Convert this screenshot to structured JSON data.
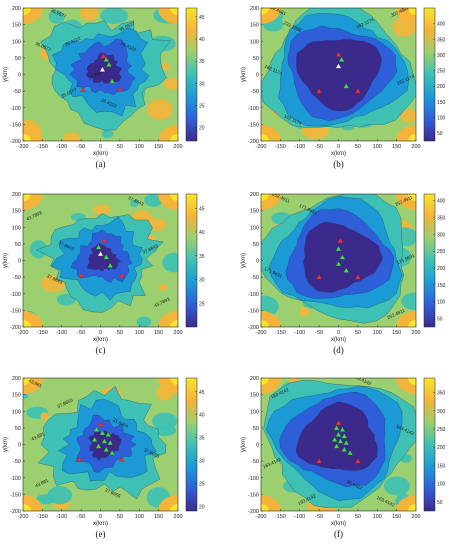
{
  "chart_data": [
    {
      "panel": "(a)",
      "type": "heatmap",
      "xlabel": "x(km)",
      "ylabel": "y(km)",
      "xlim": [
        -200,
        200
      ],
      "ylim": [
        -200,
        200
      ],
      "xticks": [
        -200,
        -150,
        -100,
        -50,
        0,
        50,
        100,
        150,
        200
      ],
      "yticks": [
        -200,
        -150,
        -100,
        -50,
        0,
        50,
        100,
        150,
        200
      ],
      "colorbar": {
        "min": 17,
        "max": 47,
        "ticks": [
          20,
          25,
          30,
          35,
          40,
          45
        ]
      },
      "colors": [
        "#3b2a8c",
        "#2f5fd8",
        "#1c9ad6",
        "#3ec1b4",
        "#9ccf70",
        "#f4b43a",
        "#f7e52a"
      ],
      "contour_labels": [
        {
          "text": "35.0577",
          "x": -110,
          "y": 180
        },
        {
          "text": "35.0577",
          "x": 70,
          "y": 140
        },
        {
          "text": "35.0577",
          "x": -150,
          "y": 80
        },
        {
          "text": "26.4122",
          "x": -70,
          "y": 95
        },
        {
          "text": "29.4122",
          "x": 70,
          "y": 80
        },
        {
          "text": "23.7664",
          "x": -10,
          "y": -5
        },
        {
          "text": "26.4122",
          "x": 20,
          "y": -90
        },
        {
          "text": "35.0577",
          "x": -80,
          "y": -60
        }
      ],
      "shape": {
        "center": [
          10,
          15
        ],
        "radii": [
          150,
          115,
          78,
          42
        ],
        "irregularity": 0.3,
        "seed": 3
      },
      "markers": [
        {
          "x": 8,
          "y": 55,
          "color": "#ff2b2b"
        },
        {
          "x": 15,
          "y": 45,
          "color": "#39e639"
        },
        {
          "x": 22,
          "y": 30,
          "color": "#39e639"
        },
        {
          "x": 5,
          "y": 15,
          "color": "#ffffff"
        },
        {
          "x": -45,
          "y": -45,
          "color": "#ff2b2b"
        },
        {
          "x": 50,
          "y": -45,
          "color": "#ff2b2b"
        },
        {
          "x": 30,
          "y": -20,
          "color": "#39e639"
        }
      ]
    },
    {
      "panel": "(b)",
      "type": "heatmap",
      "xlabel": "x(km)",
      "ylabel": "y(km)",
      "xlim": [
        -200,
        200
      ],
      "ylim": [
        -200,
        200
      ],
      "xticks": [
        -200,
        -150,
        -100,
        -50,
        0,
        50,
        100,
        150,
        200
      ],
      "yticks": [
        -200,
        -150,
        -100,
        -50,
        0,
        50,
        100,
        150,
        200
      ],
      "colorbar": {
        "min": 25,
        "max": 450,
        "ticks": [
          50,
          100,
          150,
          200,
          250,
          300,
          350,
          400
        ]
      },
      "colors": [
        "#3b2a8c",
        "#2f5fd8",
        "#1c9ad6",
        "#3ec1b4",
        "#9ccf70",
        "#f4b43a",
        "#f7e52a"
      ],
      "contour_labels": [
        {
          "text": "302.4681",
          "x": -160,
          "y": 190
        },
        {
          "text": "302.4681",
          "x": 160,
          "y": 185
        },
        {
          "text": "232.2388",
          "x": -120,
          "y": 140
        },
        {
          "text": "162.1174",
          "x": 70,
          "y": 150
        },
        {
          "text": "162.1174",
          "x": -170,
          "y": 10
        },
        {
          "text": "162.1174",
          "x": 175,
          "y": -20
        },
        {
          "text": "162.1174",
          "x": -120,
          "y": -140
        }
      ],
      "shape": {
        "center": [
          0,
          10
        ],
        "radii": [
          190,
          165,
          135,
          105
        ],
        "irregularity": 0.06,
        "seed": 7
      },
      "markers": [
        {
          "x": 0,
          "y": 60,
          "color": "#ff2b2b"
        },
        {
          "x": 8,
          "y": 45,
          "color": "#39e639"
        },
        {
          "x": 0,
          "y": 25,
          "color": "#ffffff"
        },
        {
          "x": -50,
          "y": -50,
          "color": "#ff2b2b"
        },
        {
          "x": 50,
          "y": -50,
          "color": "#ff2b2b"
        },
        {
          "x": 20,
          "y": -35,
          "color": "#39e639"
        }
      ]
    },
    {
      "panel": "(c)",
      "type": "heatmap",
      "xlabel": "x(km)",
      "ylabel": "y(km)",
      "xlim": [
        -200,
        200
      ],
      "ylim": [
        -200,
        200
      ],
      "xticks": [
        -200,
        -150,
        -100,
        -50,
        0,
        50,
        100,
        150,
        200
      ],
      "yticks": [
        -200,
        -150,
        -100,
        -50,
        0,
        50,
        100,
        150,
        200
      ],
      "colorbar": {
        "min": 20,
        "max": 48,
        "ticks": [
          25,
          30,
          35,
          40,
          45
        ]
      },
      "colors": [
        "#3b2a8c",
        "#2f5fd8",
        "#1c9ad6",
        "#3ec1b4",
        "#9ccf70",
        "#f4b43a",
        "#f7e52a"
      ],
      "contour_labels": [
        {
          "text": "37.8643",
          "x": 90,
          "y": 175
        },
        {
          "text": "43.7893",
          "x": -170,
          "y": 130
        },
        {
          "text": "37.8643",
          "x": -90,
          "y": 40
        },
        {
          "text": "37.8643",
          "x": 130,
          "y": 30
        },
        {
          "text": "37.8643",
          "x": -120,
          "y": -60
        },
        {
          "text": "43.7893",
          "x": 160,
          "y": -130
        }
      ],
      "shape": {
        "center": [
          5,
          5
        ],
        "radii": [
          140,
          105,
          70,
          38
        ],
        "irregularity": 0.32,
        "seed": 11
      },
      "markers": [
        {
          "x": 10,
          "y": 60,
          "color": "#ff2b2b"
        },
        {
          "x": -5,
          "y": 40,
          "color": "#39e639"
        },
        {
          "x": 0,
          "y": 20,
          "color": "#ffffff"
        },
        {
          "x": 15,
          "y": 10,
          "color": "#39e639"
        },
        {
          "x": -50,
          "y": -45,
          "color": "#ff2b2b"
        },
        {
          "x": 55,
          "y": -45,
          "color": "#ff2b2b"
        },
        {
          "x": 25,
          "y": -15,
          "color": "#39e639"
        }
      ]
    },
    {
      "panel": "(d)",
      "type": "heatmap",
      "xlabel": "x(km)",
      "ylabel": "y(km)",
      "xlim": [
        -200,
        200
      ],
      "ylim": [
        -200,
        200
      ],
      "xticks": [
        -200,
        -150,
        -100,
        -50,
        0,
        50,
        100,
        150,
        200
      ],
      "yticks": [
        -200,
        -150,
        -100,
        -50,
        0,
        50,
        100,
        150,
        200
      ],
      "colorbar": {
        "min": 25,
        "max": 420,
        "ticks": [
          50,
          100,
          150,
          200,
          250,
          300,
          350,
          400
        ]
      },
      "colors": [
        "#3b2a8c",
        "#2f5fd8",
        "#1c9ad6",
        "#3ec1b4",
        "#9ccf70",
        "#f4b43a",
        "#f7e52a"
      ],
      "contour_labels": [
        {
          "text": "252.4911",
          "x": -150,
          "y": 185
        },
        {
          "text": "252.4911",
          "x": 170,
          "y": 175
        },
        {
          "text": "171.9631",
          "x": -80,
          "y": 150
        },
        {
          "text": "171.9631",
          "x": 175,
          "y": 0
        },
        {
          "text": "171.9631",
          "x": -170,
          "y": -40
        },
        {
          "text": "252.4911",
          "x": 150,
          "y": -165
        }
      ],
      "shape": {
        "center": [
          0,
          10
        ],
        "radii": [
          188,
          162,
          132,
          100
        ],
        "irregularity": 0.06,
        "seed": 5
      },
      "markers": [
        {
          "x": 5,
          "y": 60,
          "color": "#ff2b2b"
        },
        {
          "x": 0,
          "y": 35,
          "color": "#39e639"
        },
        {
          "x": 10,
          "y": 10,
          "color": "#39e639"
        },
        {
          "x": 0,
          "y": -10,
          "color": "#39e639"
        },
        {
          "x": -50,
          "y": -50,
          "color": "#ff2b2b"
        },
        {
          "x": 50,
          "y": -50,
          "color": "#ff2b2b"
        },
        {
          "x": 20,
          "y": -30,
          "color": "#39e639"
        }
      ]
    },
    {
      "panel": "(e)",
      "type": "heatmap",
      "xlabel": "x(km)",
      "ylabel": "y(km)",
      "xlim": [
        -200,
        200
      ],
      "ylim": [
        -200,
        200
      ],
      "xticks": [
        -200,
        -150,
        -100,
        -50,
        0,
        50,
        100,
        150,
        200
      ],
      "yticks": [
        -200,
        -150,
        -100,
        -50,
        0,
        50,
        100,
        150,
        200
      ],
      "colorbar": {
        "min": 19,
        "max": 48,
        "ticks": [
          20,
          25,
          30,
          35,
          40,
          45
        ]
      },
      "colors": [
        "#3b2a8c",
        "#2f5fd8",
        "#1c9ad6",
        "#3ec1b4",
        "#9ccf70",
        "#f4b43a",
        "#f7e52a"
      ],
      "contour_labels": [
        {
          "text": "43.881",
          "x": -170,
          "y": 180
        },
        {
          "text": "37.8655",
          "x": -90,
          "y": 120
        },
        {
          "text": "31.8464",
          "x": 50,
          "y": 60
        },
        {
          "text": "43.881",
          "x": -160,
          "y": 20
        },
        {
          "text": "37.8655",
          "x": 130,
          "y": -30
        },
        {
          "text": "43.881",
          "x": -150,
          "y": -120
        },
        {
          "text": "37.8655",
          "x": 30,
          "y": -150
        }
      ],
      "shape": {
        "center": [
          10,
          0
        ],
        "radii": [
          150,
          110,
          72,
          40
        ],
        "irregularity": 0.34,
        "seed": 13
      },
      "markers": [
        {
          "x": 0,
          "y": 60,
          "color": "#ff2b2b"
        },
        {
          "x": -10,
          "y": 45,
          "color": "#39e639"
        },
        {
          "x": 5,
          "y": 35,
          "color": "#39e639"
        },
        {
          "x": 20,
          "y": 30,
          "color": "#39e639"
        },
        {
          "x": -15,
          "y": 15,
          "color": "#39e639"
        },
        {
          "x": 10,
          "y": 10,
          "color": "#39e639"
        },
        {
          "x": 25,
          "y": 5,
          "color": "#39e639"
        },
        {
          "x": -5,
          "y": -5,
          "color": "#39e639"
        },
        {
          "x": 15,
          "y": -15,
          "color": "#39e639"
        },
        {
          "x": 30,
          "y": -25,
          "color": "#39e639"
        },
        {
          "x": -55,
          "y": -45,
          "color": "#ff2b2b"
        },
        {
          "x": 55,
          "y": -45,
          "color": "#ff2b2b"
        }
      ]
    },
    {
      "panel": "(f)",
      "type": "heatmap",
      "xlabel": "x(km)",
      "ylabel": "y(km)",
      "xlim": [
        -200,
        200
      ],
      "ylim": [
        -200,
        200
      ],
      "xticks": [
        -200,
        -150,
        -100,
        -50,
        0,
        50,
        100,
        150,
        200
      ],
      "yticks": [
        -200,
        -150,
        -100,
        -50,
        0,
        50,
        100,
        150,
        200
      ],
      "colorbar": {
        "min": 25,
        "max": 390,
        "ticks": [
          50,
          100,
          150,
          200,
          250,
          300,
          350
        ]
      },
      "colors": [
        "#3b2a8c",
        "#2f5fd8",
        "#1c9ad6",
        "#3ec1b4",
        "#9ccf70",
        "#f4b43a",
        "#f7e52a"
      ],
      "contour_labels": [
        {
          "text": "163.4142",
          "x": 60,
          "y": 190
        },
        {
          "text": "163.4142",
          "x": -150,
          "y": 150
        },
        {
          "text": "163.4142",
          "x": 170,
          "y": 40
        },
        {
          "text": "163.4142",
          "x": -170,
          "y": -60
        },
        {
          "text": "96.6422",
          "x": 40,
          "y": -125
        },
        {
          "text": "163.4142",
          "x": -80,
          "y": -170
        },
        {
          "text": "163.4142",
          "x": 120,
          "y": -175
        }
      ],
      "shape": {
        "center": [
          0,
          15
        ],
        "radii": [
          190,
          165,
          135,
          100
        ],
        "irregularity": 0.07,
        "seed": 17
      },
      "markers": [
        {
          "x": 0,
          "y": 65,
          "color": "#ff2b2b"
        },
        {
          "x": -5,
          "y": 50,
          "color": "#39e639"
        },
        {
          "x": 10,
          "y": 45,
          "color": "#39e639"
        },
        {
          "x": 0,
          "y": 30,
          "color": "#39e639"
        },
        {
          "x": 15,
          "y": 25,
          "color": "#39e639"
        },
        {
          "x": -10,
          "y": 15,
          "color": "#39e639"
        },
        {
          "x": 5,
          "y": 10,
          "color": "#39e639"
        },
        {
          "x": 20,
          "y": 5,
          "color": "#39e639"
        },
        {
          "x": -5,
          "y": -5,
          "color": "#39e639"
        },
        {
          "x": 15,
          "y": -15,
          "color": "#39e639"
        },
        {
          "x": 30,
          "y": -25,
          "color": "#39e639"
        },
        {
          "x": -50,
          "y": -50,
          "color": "#ff2b2b"
        },
        {
          "x": 50,
          "y": -50,
          "color": "#ff2b2b"
        }
      ]
    }
  ]
}
